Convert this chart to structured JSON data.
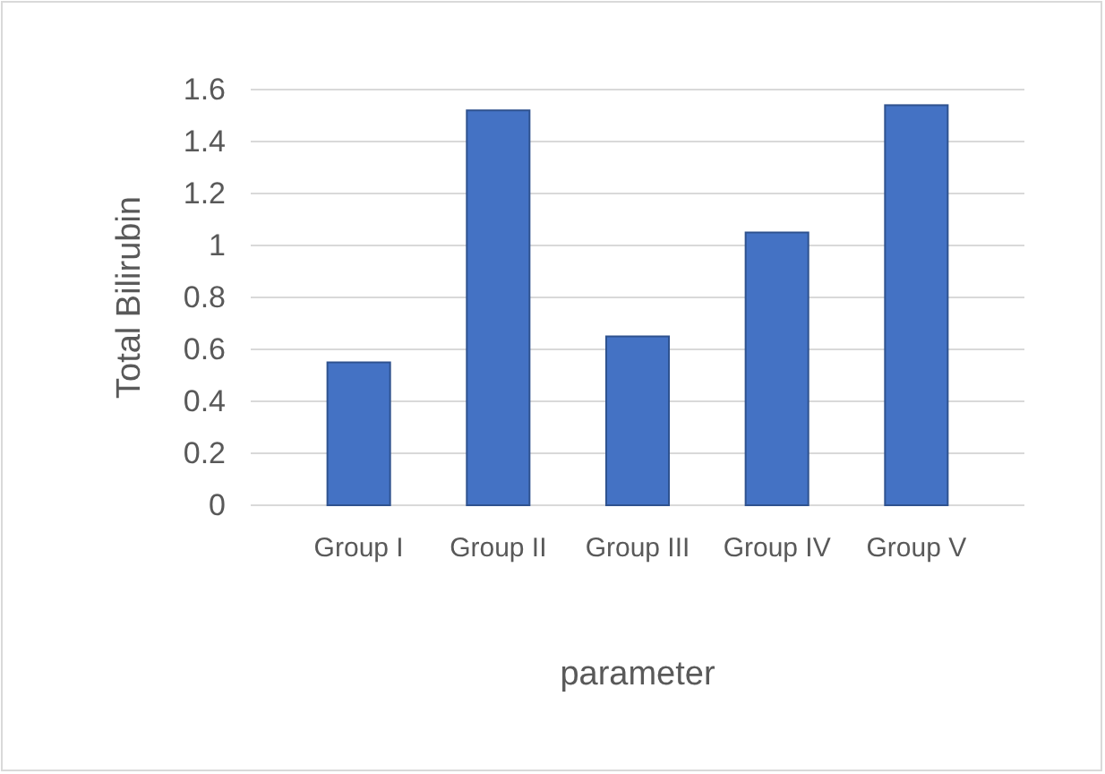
{
  "chart_data": {
    "type": "bar",
    "xlabel": "parameter",
    "ylabel": "Total Bilirubin",
    "categories": [
      "Group I",
      "Group II",
      "Group III",
      "Group IV",
      "Group V"
    ],
    "values": [
      0.55,
      1.52,
      0.65,
      1.05,
      1.54
    ],
    "color": "#4472c4",
    "ylim": [
      0,
      1.6
    ],
    "yticks": [
      0,
      0.2,
      0.4,
      0.6,
      0.8,
      1,
      1.2,
      1.4,
      1.6
    ],
    "grid": true
  }
}
